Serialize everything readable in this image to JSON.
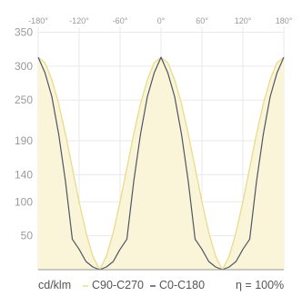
{
  "colors": {
    "c90_line": "#e9dc8a",
    "c90_fill": "#faf4d8",
    "c0_line": "#4f5663",
    "grid": "#e9e9e9",
    "axis": "#9a9a9a"
  },
  "legend": {
    "unit": "cd/klm",
    "c90_label": "C90-C270",
    "c0_label": "C0-C180",
    "efficiency": "η = 100%"
  },
  "chart_data": {
    "type": "line",
    "title": "",
    "x_ticks": [
      "-180°",
      "-120°",
      "-60°",
      "0°",
      "60°",
      "120°",
      "180°"
    ],
    "x_tick_values": [
      -180,
      -120,
      -60,
      0,
      60,
      120,
      180
    ],
    "y_ticks": [
      "50",
      "100",
      "140",
      "190",
      "250",
      "300",
      "350"
    ],
    "y_tick_values": [
      50,
      100,
      140,
      190,
      250,
      300,
      350
    ],
    "xlim": [
      -180,
      180
    ],
    "ylim": [
      0,
      350
    ],
    "grid": true,
    "legend_position": "bottom",
    "x": [
      -180,
      -170,
      -160,
      -150,
      -140,
      -130,
      -120,
      -110,
      -100,
      -90,
      -80,
      -70,
      -60,
      -50,
      -40,
      -30,
      -20,
      -10,
      0,
      10,
      20,
      30,
      40,
      50,
      60,
      70,
      80,
      90,
      100,
      110,
      120,
      130,
      140,
      150,
      160,
      170,
      180
    ],
    "series": [
      {
        "name": "C90-C270",
        "values": [
          313,
          305,
          280,
          245,
          200,
          150,
          100,
          55,
          20,
          0,
          20,
          55,
          100,
          150,
          200,
          245,
          280,
          305,
          313,
          305,
          280,
          245,
          200,
          150,
          100,
          55,
          20,
          0,
          20,
          55,
          100,
          150,
          200,
          245,
          280,
          305,
          313
        ]
      },
      {
        "name": "C0-C180",
        "values": [
          313,
          290,
          255,
          200,
          130,
          45,
          30,
          12,
          4,
          0,
          4,
          12,
          30,
          45,
          130,
          200,
          255,
          290,
          313,
          290,
          255,
          200,
          130,
          45,
          30,
          12,
          4,
          0,
          4,
          12,
          30,
          45,
          130,
          200,
          255,
          290,
          313
        ]
      }
    ]
  }
}
